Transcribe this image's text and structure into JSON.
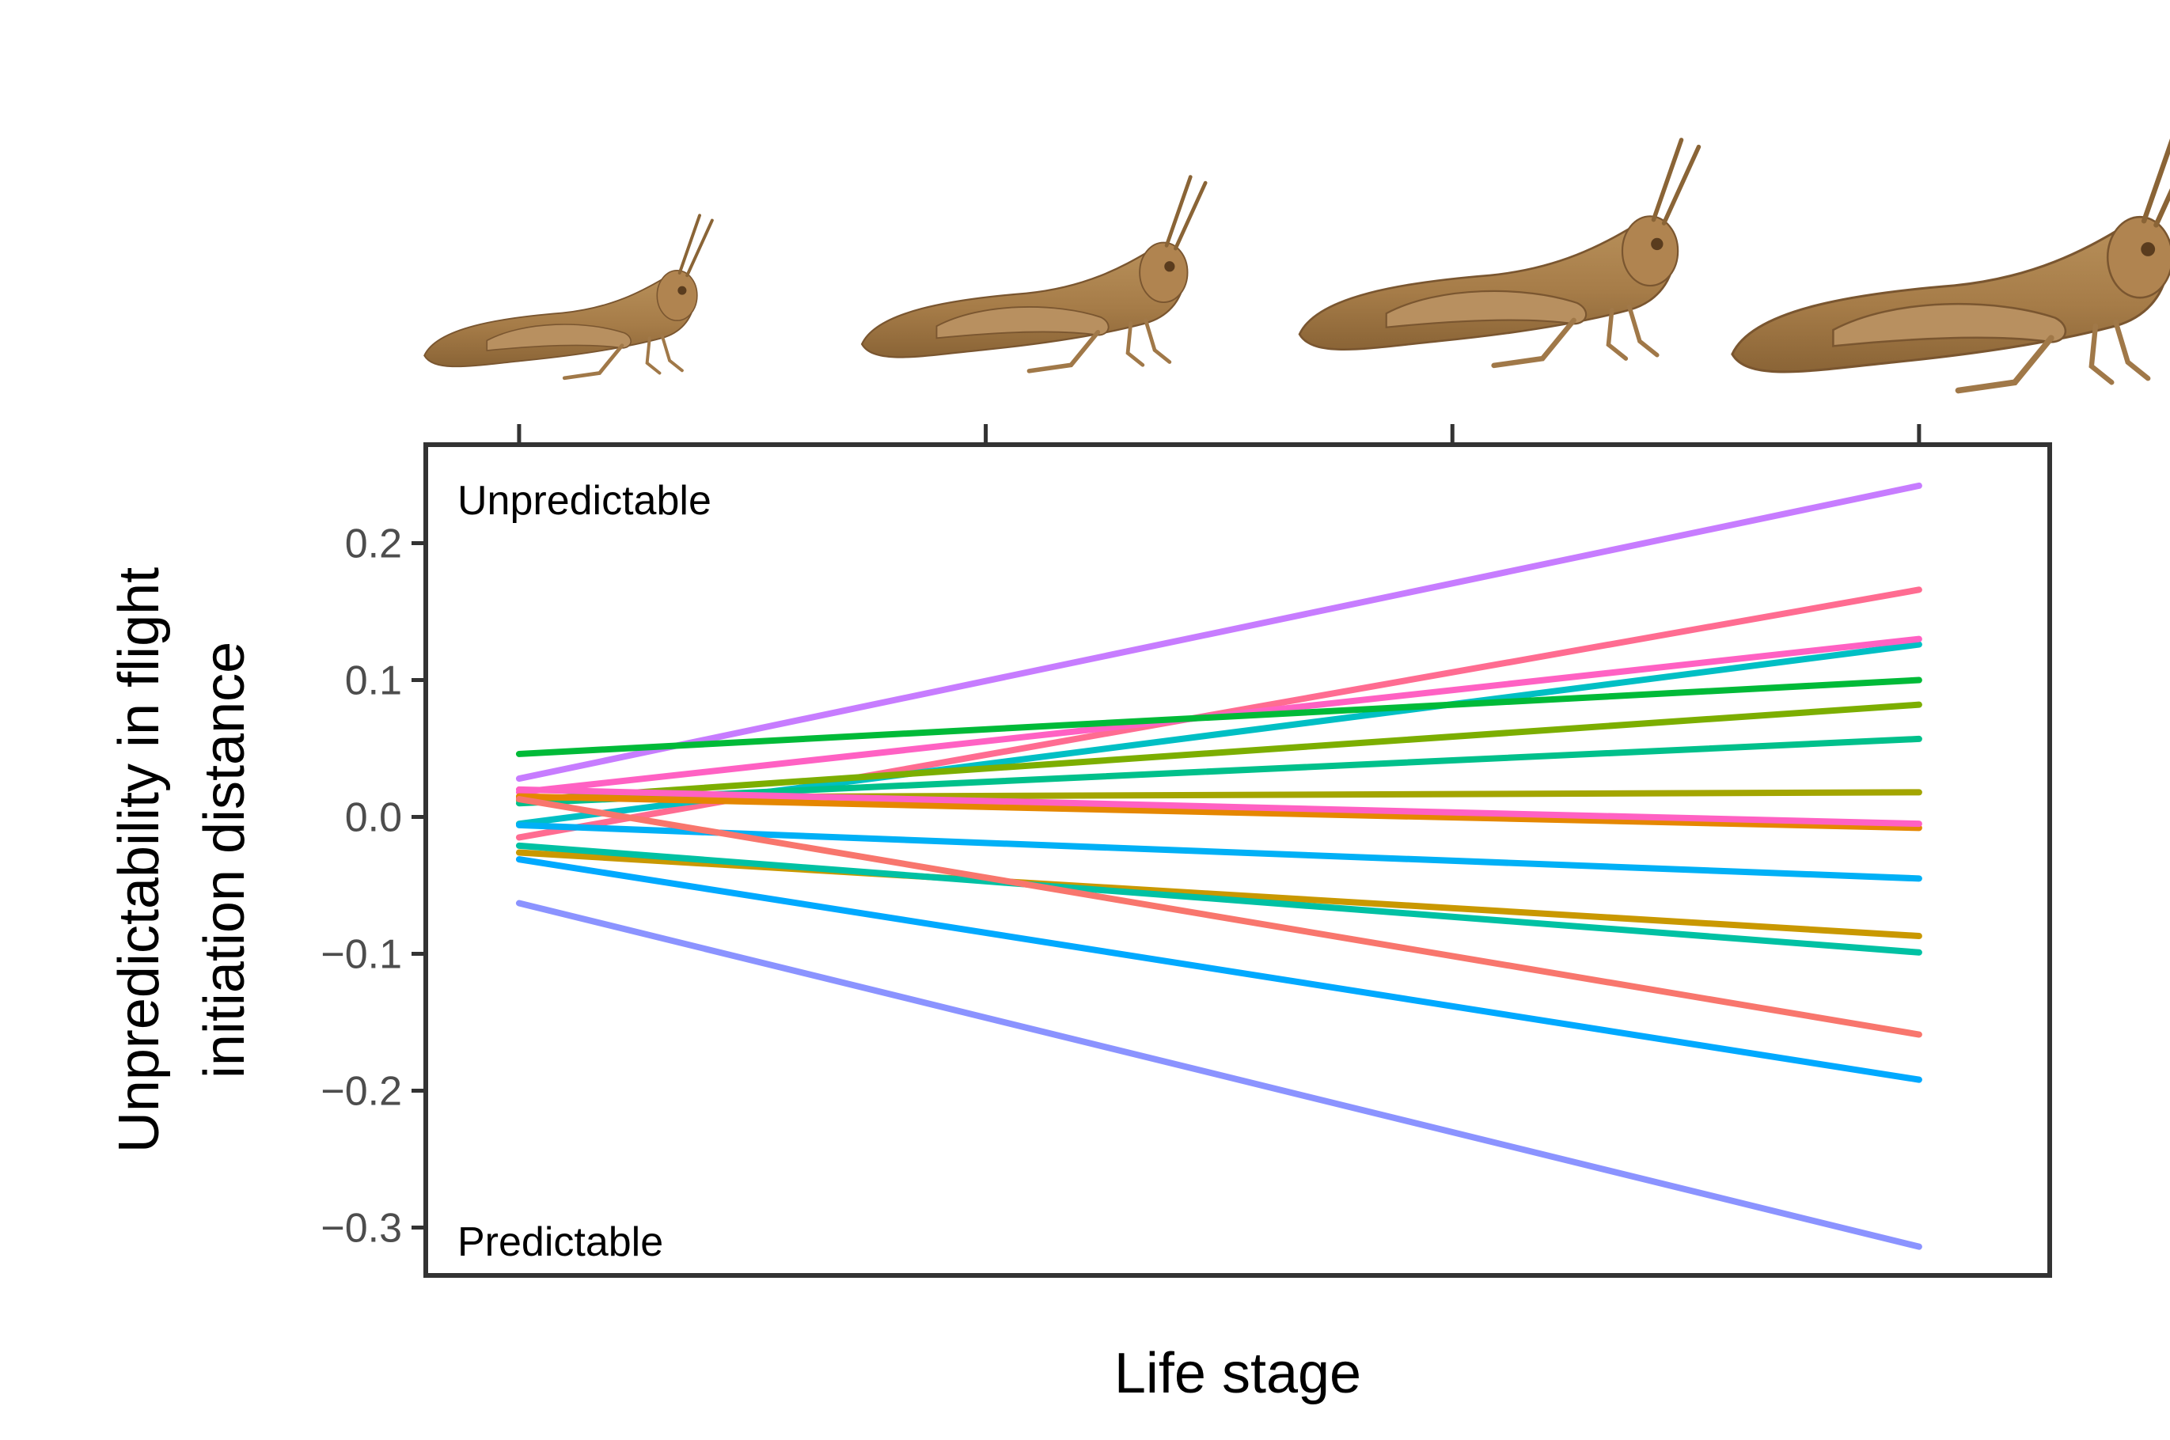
{
  "chart_data": {
    "type": "line",
    "xlabel": "Life stage",
    "ylabel_lines": [
      "Unpredictability in flight",
      "initiation distance"
    ],
    "x": [
      1,
      2,
      3,
      4
    ],
    "xlim": [
      0.8,
      4.28
    ],
    "ylim": [
      -0.335,
      0.272
    ],
    "yticks": [
      {
        "value": 0.2,
        "label": "0.2"
      },
      {
        "value": 0.1,
        "label": "0.1"
      },
      {
        "value": 0.0,
        "label": "0.0"
      },
      {
        "value": -0.1,
        "label": "−0.1"
      },
      {
        "value": -0.2,
        "label": "−0.2"
      },
      {
        "value": -0.3,
        "label": "−0.3"
      }
    ],
    "grid": false,
    "legend": "none",
    "annotations": {
      "top": "Unpredictable",
      "bottom": "Predictable"
    },
    "life_stage_images": [
      "grasshopper-nymph-small",
      "grasshopper-nymph-medium",
      "grasshopper-nymph-large",
      "grasshopper-adult"
    ],
    "series": [
      {
        "color": "#C77CFF",
        "start": 0.028,
        "end": 0.242
      },
      {
        "color": "#FF6C91",
        "start": -0.015,
        "end": 0.166
      },
      {
        "color": "#00BFC4",
        "start": -0.005,
        "end": 0.126
      },
      {
        "color": "#FF61C3",
        "start": 0.018,
        "end": 0.13
      },
      {
        "color": "#00BA38",
        "start": 0.046,
        "end": 0.1
      },
      {
        "color": "#7CAE00",
        "start": 0.012,
        "end": 0.082
      },
      {
        "color": "#00C08B",
        "start": 0.01,
        "end": 0.057
      },
      {
        "color": "#A3A500",
        "start": 0.014,
        "end": 0.018
      },
      {
        "color": "#E58700",
        "start": 0.015,
        "end": -0.008
      },
      {
        "color": "#FF61C3",
        "start": 0.02,
        "end": -0.005
      },
      {
        "color": "#00B0F6",
        "start": -0.006,
        "end": -0.045
      },
      {
        "color": "#C99800",
        "start": -0.026,
        "end": -0.087
      },
      {
        "color": "#00C1A3",
        "start": -0.021,
        "end": -0.099
      },
      {
        "color": "#F8766D",
        "start": 0.013,
        "end": -0.159
      },
      {
        "color": "#00A9FF",
        "start": -0.031,
        "end": -0.192
      },
      {
        "color": "#8B93FF",
        "start": -0.063,
        "end": -0.314
      }
    ]
  }
}
